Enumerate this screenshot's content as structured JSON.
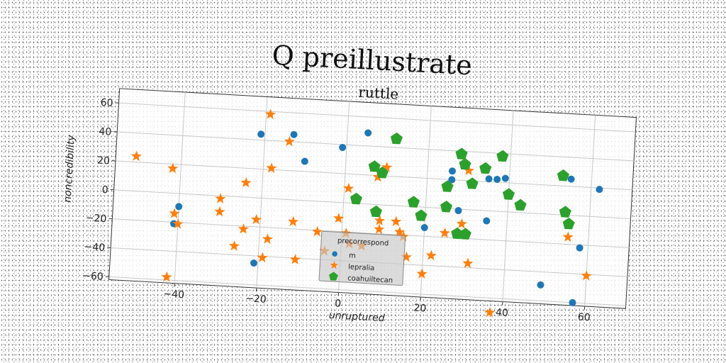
{
  "chart_data": {
    "type": "scatter",
    "title": "Q preillustrate",
    "subtitle": "ruttle",
    "xlabel": "unruptured",
    "ylabel": "noncredibility",
    "xlim": [
      -56,
      70
    ],
    "ylim": [
      -62,
      70
    ],
    "xticks": [
      -40,
      -20,
      0,
      20,
      40,
      60
    ],
    "yticks": [
      -60,
      -40,
      -20,
      0,
      20,
      40,
      60
    ],
    "grid": true,
    "legend": {
      "title": "precorrespond",
      "placement": "bottom-center"
    },
    "series": [
      {
        "name": "m",
        "color": "#1f77b4",
        "marker": "circle",
        "points": [
          [
            -21,
            44
          ],
          [
            -13,
            45
          ],
          [
            -10,
            27
          ],
          [
            -1,
            38
          ],
          [
            5,
            49
          ],
          [
            -40,
            -9
          ],
          [
            -41,
            -21
          ],
          [
            -21,
            -45
          ],
          [
            26,
            26
          ],
          [
            26,
            20
          ],
          [
            28,
            -1
          ],
          [
            35,
            22
          ],
          [
            37,
            22
          ],
          [
            39,
            23
          ],
          [
            35,
            -7
          ],
          [
            20,
            -14
          ],
          [
            55,
            25
          ],
          [
            62,
            19
          ],
          [
            58,
            -22
          ],
          [
            49,
            -49
          ],
          [
            57,
            -60
          ]
        ]
      },
      {
        "name": "lepralia",
        "color": "#ff7f0e",
        "marker": "star",
        "points": [
          [
            -51,
            24
          ],
          [
            -42,
            17
          ],
          [
            -41,
            -14
          ],
          [
            -40,
            -21
          ],
          [
            -42,
            -58
          ],
          [
            -19,
            58
          ],
          [
            -14,
            40
          ],
          [
            -18,
            21
          ],
          [
            -24,
            10
          ],
          [
            -30,
            -2
          ],
          [
            -30,
            -11
          ],
          [
            -21,
            -15
          ],
          [
            -24,
            -22
          ],
          [
            -18,
            -28
          ],
          [
            -26,
            -34
          ],
          [
            -19,
            -41
          ],
          [
            -12,
            -15
          ],
          [
            -11,
            -41
          ],
          [
            -6,
            -21
          ],
          [
            -4,
            -34
          ],
          [
            -1,
            -11
          ],
          [
            1,
            10
          ],
          [
            1,
            -21
          ],
          [
            2,
            -28
          ],
          [
            5,
            -29
          ],
          [
            10,
            26
          ],
          [
            8,
            19
          ],
          [
            9,
            -11
          ],
          [
            9,
            -17
          ],
          [
            13,
            -11
          ],
          [
            14,
            -18
          ],
          [
            15,
            -21
          ],
          [
            16,
            -35
          ],
          [
            22,
            -33
          ],
          [
            20,
            -46
          ],
          [
            29,
            -10
          ],
          [
            25,
            -17
          ],
          [
            30,
            27
          ],
          [
            31,
            -37
          ],
          [
            37,
            -70
          ],
          [
            55,
            -15
          ],
          [
            60,
            -41
          ]
        ]
      },
      {
        "name": "coahuiltecan",
        "color": "#2ca02c",
        "marker": "pentagon",
        "points": [
          [
            12,
            46
          ],
          [
            7,
            26
          ],
          [
            9,
            22
          ],
          [
            3,
            3
          ],
          [
            8,
            -5
          ],
          [
            17,
            3
          ],
          [
            19,
            -6
          ],
          [
            25,
            15
          ],
          [
            25,
            1
          ],
          [
            28,
            38
          ],
          [
            29,
            31
          ],
          [
            31,
            18
          ],
          [
            34,
            29
          ],
          [
            28,
            -17
          ],
          [
            30,
            -17
          ],
          [
            38,
            38
          ],
          [
            40,
            12
          ],
          [
            43,
            5
          ],
          [
            53,
            27
          ],
          [
            54,
            2
          ],
          [
            55,
            -6
          ]
        ]
      }
    ]
  }
}
